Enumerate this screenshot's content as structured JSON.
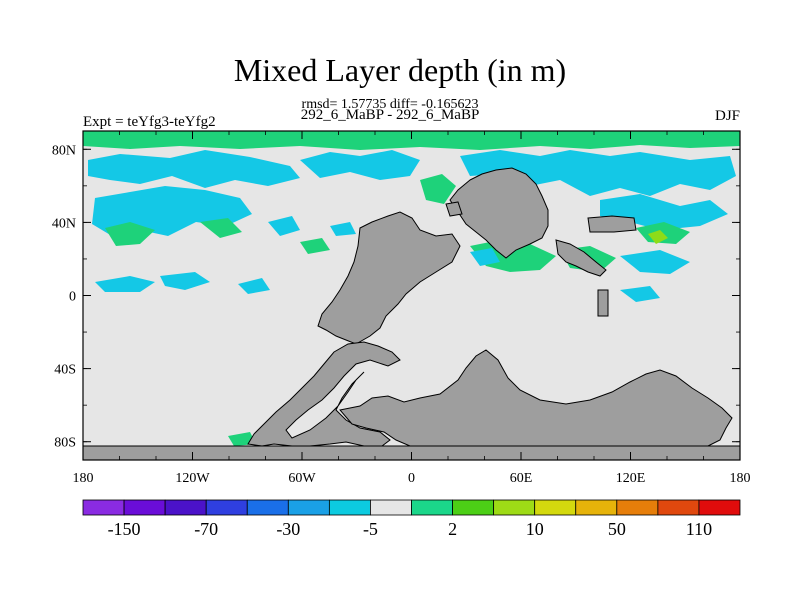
{
  "title": "Mixed Layer depth (in m)",
  "stats": "rmsd= 1.57735 diff= -0.165623",
  "subtitle_center": "292_6_MaBP - 292_6_MaBP",
  "subtitle_left": "Expt = teYfg3-teYfg2",
  "subtitle_right": "DJF",
  "map": {
    "lon_ticks": [
      "180",
      "120W",
      "60W",
      "0",
      "60E",
      "120E",
      "180"
    ],
    "lat_ticks": [
      "80N",
      "40N",
      "0",
      "40S",
      "80S"
    ]
  },
  "colorbar": {
    "colors": [
      "#8a2be2",
      "#6a0dd8",
      "#4b12c9",
      "#2f3fe0",
      "#1a6fe8",
      "#1aa0e6",
      "#0ccbe0",
      "#e6e6e6",
      "#1bd68a",
      "#4ccf16",
      "#9edb16",
      "#d4d90e",
      "#e6b30a",
      "#e67e0a",
      "#e0480e",
      "#e00c0c"
    ],
    "labels": [
      "-150",
      "-70",
      "-30",
      "-5",
      "2",
      "10",
      "50",
      "110"
    ]
  },
  "colors": {
    "ocean_background": "#e6e6e6",
    "land": "#9e9e9e",
    "cyan": "#14c8e6",
    "green": "#1ed27a",
    "lime": "#8edc18"
  }
}
